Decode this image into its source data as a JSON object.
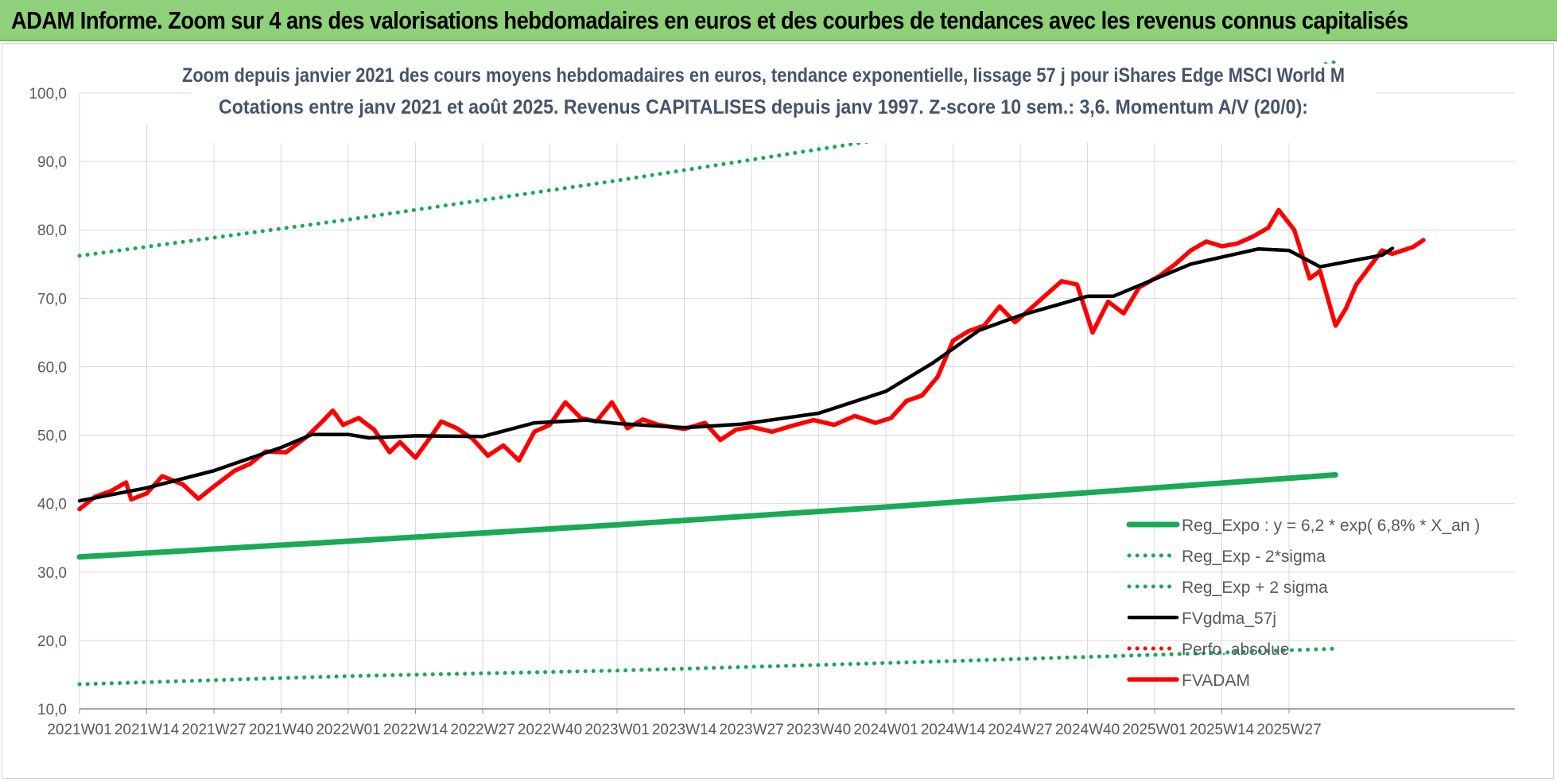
{
  "banner": {
    "title": "ADAM Informe. Zoom sur 4 ans des valorisations hebdomadaires en euros et des courbes de tendances avec les revenus connus capitalisés"
  },
  "colors": {
    "banner_bg": "#8fd07a",
    "trend": "#1aaa55",
    "red": "#ff0000",
    "black": "#000000",
    "grid": "#d9d9d9",
    "title_text": "#44546a"
  },
  "chart_data": {
    "type": "line",
    "title": "Zoom depuis janvier 2021 des cours moyens hebdomadaires en euros, tendance exponentielle, lissage 57 j pour iShares Edge MSCI World M",
    "subtitle": "Cotations entre janv 2021 et août 2025. Revenus CAPITALISES depuis janv 1997. Z-score 10 sem.: 3,6. Momentum A/V (20/0):",
    "xlabel": "",
    "ylabel": "",
    "ylim": [
      10,
      100
    ],
    "yticks": [
      "10,0",
      "20,0",
      "30,0",
      "40,0",
      "50,0",
      "60,0",
      "70,0",
      "80,0",
      "90,0",
      "100,0"
    ],
    "x_ticks": [
      "2021W01",
      "2021W14",
      "2021W27",
      "2021W40",
      "2022W01",
      "2022W14",
      "2022W27",
      "2022W40",
      "2023W01",
      "2023W14",
      "2023W27",
      "2023W40",
      "2024W01",
      "2024W14",
      "2024W27",
      "2024W40",
      "2025W01",
      "2025W14",
      "2025W27"
    ],
    "n_weeks": 244,
    "grid": true,
    "legend_position": "bottom-right",
    "series": [
      {
        "name": "Reg_Expo : y = 6,2 * exp( 6,8% *  X_an )",
        "style": "solid",
        "color": "#1aaa55",
        "points": [
          [
            0,
            32.2
          ],
          [
            52,
            34.5
          ],
          [
            104,
            36.9
          ],
          [
            156,
            39.5
          ],
          [
            208,
            42.3
          ],
          [
            243,
            44.2
          ]
        ]
      },
      {
        "name": "Reg_Exp - 2*sigma",
        "style": "dotted",
        "color": "#1aaa55",
        "points": [
          [
            0,
            13.6
          ],
          [
            52,
            14.8
          ],
          [
            104,
            15.6
          ],
          [
            156,
            16.7
          ],
          [
            208,
            17.9
          ],
          [
            243,
            18.8
          ]
        ]
      },
      {
        "name": "Reg_Exp + 2 sigma",
        "style": "dotted",
        "color": "#1aaa55",
        "points": [
          [
            0,
            76.2
          ],
          [
            52,
            81.5
          ],
          [
            104,
            87.2
          ],
          [
            156,
            93.3
          ],
          [
            208,
            99.8
          ],
          [
            243,
            104.5
          ]
        ]
      },
      {
        "name": "FVgdma_57j",
        "style": "solid",
        "color": "#000000",
        "points": [
          [
            0,
            40.4
          ],
          [
            13,
            42.3
          ],
          [
            26,
            44.8
          ],
          [
            39,
            48.2
          ],
          [
            45,
            50.1
          ],
          [
            52,
            50.1
          ],
          [
            56,
            49.6
          ],
          [
            65,
            49.9
          ],
          [
            78,
            49.8
          ],
          [
            88,
            51.8
          ],
          [
            98,
            52.2
          ],
          [
            104,
            51.7
          ],
          [
            117,
            51.1
          ],
          [
            128,
            51.6
          ],
          [
            143,
            53.2
          ],
          [
            156,
            56.4
          ],
          [
            165,
            60.5
          ],
          [
            174,
            65.3
          ],
          [
            182,
            67.5
          ],
          [
            195,
            70.3
          ],
          [
            200,
            70.3
          ],
          [
            215,
            75.0
          ],
          [
            228,
            77.2
          ],
          [
            234,
            77.0
          ],
          [
            240,
            74.6
          ],
          [
            252,
            76.3
          ],
          [
            254,
            77.3
          ]
        ]
      },
      {
        "name": "Perfo. absolue",
        "style": "dotted",
        "color": "#ff0000",
        "points": []
      },
      {
        "name": "FVADAM",
        "style": "solid",
        "color": "#ff0000",
        "points": [
          [
            0,
            39.2
          ],
          [
            3,
            41.0
          ],
          [
            6,
            41.8
          ],
          [
            9,
            43.1
          ],
          [
            10,
            40.6
          ],
          [
            13,
            41.5
          ],
          [
            16,
            44.0
          ],
          [
            20,
            42.8
          ],
          [
            23,
            40.7
          ],
          [
            26,
            42.5
          ],
          [
            30,
            44.8
          ],
          [
            33,
            45.8
          ],
          [
            36,
            47.6
          ],
          [
            40,
            47.5
          ],
          [
            44,
            49.8
          ],
          [
            47,
            52.0
          ],
          [
            49,
            53.6
          ],
          [
            51,
            51.5
          ],
          [
            54,
            52.5
          ],
          [
            57,
            50.8
          ],
          [
            60,
            47.5
          ],
          [
            62,
            49.0
          ],
          [
            65,
            46.7
          ],
          [
            68,
            49.8
          ],
          [
            70,
            52.0
          ],
          [
            73,
            51.0
          ],
          [
            76,
            49.5
          ],
          [
            79,
            47.0
          ],
          [
            82,
            48.5
          ],
          [
            85,
            46.3
          ],
          [
            88,
            50.5
          ],
          [
            91,
            51.5
          ],
          [
            94,
            54.8
          ],
          [
            97,
            52.5
          ],
          [
            100,
            52.0
          ],
          [
            103,
            54.8
          ],
          [
            106,
            51.0
          ],
          [
            109,
            52.3
          ],
          [
            112,
            51.5
          ],
          [
            117,
            50.9
          ],
          [
            121,
            51.8
          ],
          [
            124,
            49.3
          ],
          [
            127,
            50.8
          ],
          [
            130,
            51.2
          ],
          [
            134,
            50.5
          ],
          [
            138,
            51.4
          ],
          [
            142,
            52.2
          ],
          [
            146,
            51.5
          ],
          [
            150,
            52.8
          ],
          [
            154,
            51.8
          ],
          [
            157,
            52.5
          ],
          [
            160,
            55.0
          ],
          [
            163,
            55.8
          ],
          [
            166,
            58.5
          ],
          [
            169,
            63.8
          ],
          [
            172,
            65.2
          ],
          [
            175,
            66.0
          ],
          [
            178,
            68.8
          ],
          [
            181,
            66.5
          ],
          [
            184,
            68.5
          ],
          [
            187,
            70.5
          ],
          [
            190,
            72.5
          ],
          [
            193,
            72.0
          ],
          [
            196,
            65.0
          ],
          [
            199,
            69.5
          ],
          [
            202,
            67.8
          ],
          [
            205,
            71.6
          ],
          [
            209,
            73.3
          ],
          [
            212,
            75.0
          ],
          [
            215,
            77.0
          ],
          [
            218,
            78.3
          ],
          [
            221,
            77.6
          ],
          [
            224,
            78.0
          ],
          [
            227,
            79.0
          ],
          [
            230,
            80.3
          ],
          [
            232,
            82.9
          ],
          [
            235,
            80.0
          ],
          [
            238,
            72.9
          ],
          [
            240,
            74.0
          ],
          [
            243,
            66.0
          ],
          [
            245,
            68.5
          ],
          [
            247,
            72.0
          ],
          [
            250,
            75.0
          ],
          [
            252,
            77.0
          ],
          [
            254,
            76.5
          ],
          [
            256,
            77.0
          ],
          [
            258,
            77.5
          ],
          [
            260,
            78.5
          ]
        ]
      }
    ]
  }
}
